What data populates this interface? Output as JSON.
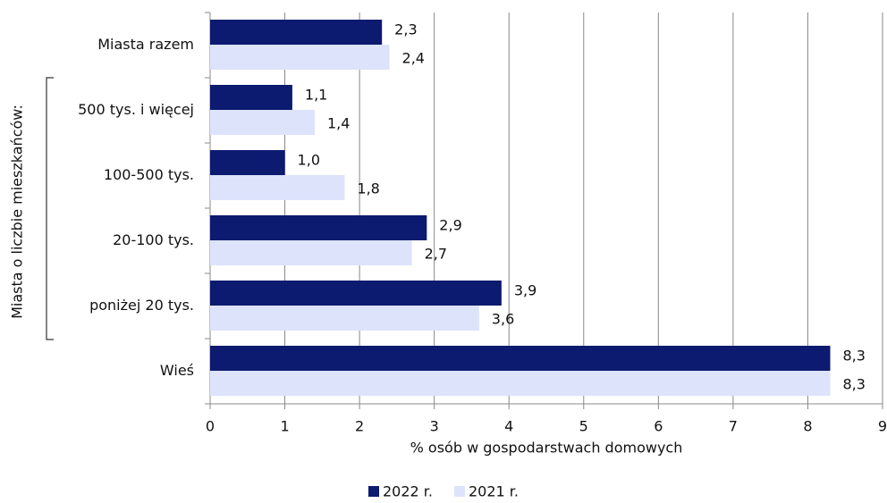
{
  "chart_data": {
    "type": "bar",
    "orientation": "horizontal",
    "categories": [
      "Miasta razem",
      "500 tys. i więcej",
      "100-500 tys.",
      "20-100 tys.",
      "poniżej 20 tys.",
      "Wieś"
    ],
    "group_label": "Miasta o liczbie mieszkańców:",
    "series": [
      {
        "name": "2022 r.",
        "color": "#0c1a6f",
        "values": [
          2.3,
          1.1,
          1.0,
          2.9,
          3.9,
          8.3
        ],
        "value_labels": [
          "2,3",
          "1,1",
          "1,0",
          "2,9",
          "3,9",
          "8,3"
        ]
      },
      {
        "name": "2021 r.",
        "color": "#dce3fb",
        "values": [
          2.4,
          1.4,
          1.8,
          2.7,
          3.6,
          8.3
        ],
        "value_labels": [
          "2,4",
          "1,4",
          "1,8",
          "2,7",
          "3,6",
          "8,3"
        ]
      }
    ],
    "xlabel": "% osób w gospodarstwach domowych",
    "xlim": [
      0,
      9
    ],
    "xticks": [
      0,
      1,
      2,
      3,
      4,
      5,
      6,
      7,
      8,
      9
    ],
    "grid": true,
    "legend": "bottom"
  }
}
